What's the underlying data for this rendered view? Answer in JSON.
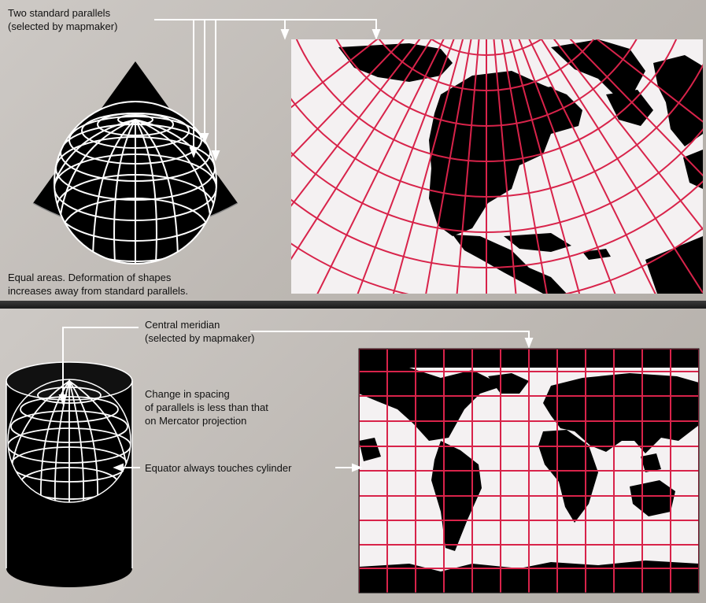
{
  "conic": {
    "parallels_label_line1": "Two standard parallels",
    "parallels_label_line2": "(selected by mapmaker)",
    "caption_line1": "Equal areas. Deformation of shapes",
    "caption_line2": "increases away from standard parallels."
  },
  "cylindrical": {
    "meridian_label_line1": "Central meridian",
    "meridian_label_line2": "(selected by mapmaker)",
    "spacing_note_line1": "Change in spacing",
    "spacing_note_line2": "of parallels is less than that",
    "spacing_note_line3": "on Mercator projection",
    "equator_label": "Equator always touches cylinder"
  },
  "colors": {
    "panel_gray": "#c4c0bb",
    "graticule_red": "#d8234a",
    "land": "#000000",
    "map_background": "#f4f1f2",
    "leader_line": "#ffffff"
  }
}
